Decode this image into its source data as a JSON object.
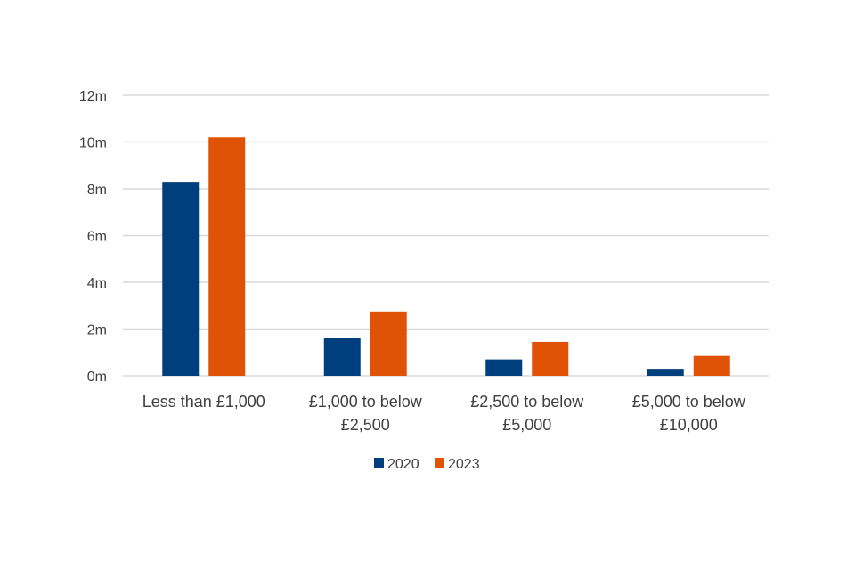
{
  "chart_data": {
    "type": "bar",
    "title": "",
    "xlabel": "",
    "ylabel": "",
    "categories": [
      [
        "Less than £1,000"
      ],
      [
        "£1,000 to below",
        "£2,500"
      ],
      [
        "£2,500 to below",
        "£5,000"
      ],
      [
        "£5,000 to below",
        "£10,000"
      ]
    ],
    "series": [
      {
        "name": "2020",
        "color": "#003f7d",
        "values": [
          8.3,
          1.6,
          0.7,
          0.3
        ]
      },
      {
        "name": "2023",
        "color": "#e05206",
        "values": [
          10.2,
          2.75,
          1.45,
          0.85
        ]
      }
    ],
    "ylim": [
      0,
      12
    ],
    "yticks": [
      0,
      2,
      4,
      6,
      8,
      10,
      12
    ],
    "ytick_labels": [
      "0m",
      "2m",
      "4m",
      "6m",
      "8m",
      "10m",
      "12m"
    ],
    "grid": true,
    "gridline_color": "#d9d9d9",
    "legend_position": "bottom"
  }
}
